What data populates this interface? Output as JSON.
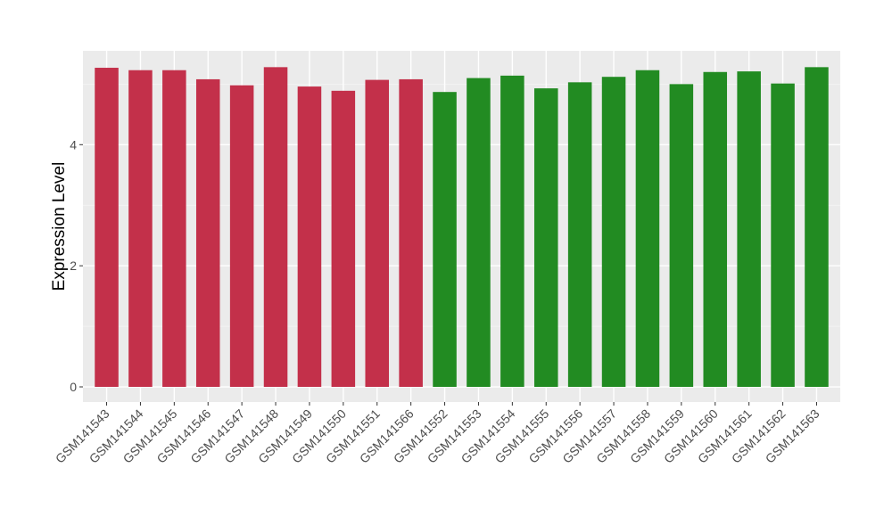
{
  "chart_data": {
    "type": "bar",
    "title": "",
    "xlabel": "",
    "ylabel": "Expression Level",
    "ylim": [
      -0.25,
      5.55
    ],
    "yticks": [
      0,
      2,
      4
    ],
    "grid": true,
    "background": "#ebebeb",
    "categories": [
      "GSM141543",
      "GSM141544",
      "GSM141545",
      "GSM141546",
      "GSM141547",
      "GSM141548",
      "GSM141549",
      "GSM141550",
      "GSM141551",
      "GSM141566",
      "GSM141552",
      "GSM141553",
      "GSM141554",
      "GSM141555",
      "GSM141556",
      "GSM141557",
      "GSM141558",
      "GSM141559",
      "GSM141560",
      "GSM141561",
      "GSM141562",
      "GSM141563"
    ],
    "values": [
      5.27,
      5.23,
      5.23,
      5.08,
      4.98,
      5.28,
      4.96,
      4.89,
      5.07,
      5.08,
      4.87,
      5.1,
      5.14,
      4.93,
      5.03,
      5.12,
      5.23,
      5.0,
      5.2,
      5.21,
      5.01,
      5.28
    ],
    "bar_colors": [
      "#c3304a",
      "#c3304a",
      "#c3304a",
      "#c3304a",
      "#c3304a",
      "#c3304a",
      "#c3304a",
      "#c3304a",
      "#c3304a",
      "#c3304a",
      "#228b22",
      "#228b22",
      "#228b22",
      "#228b22",
      "#228b22",
      "#228b22",
      "#228b22",
      "#228b22",
      "#228b22",
      "#228b22",
      "#228b22",
      "#228b22"
    ]
  }
}
